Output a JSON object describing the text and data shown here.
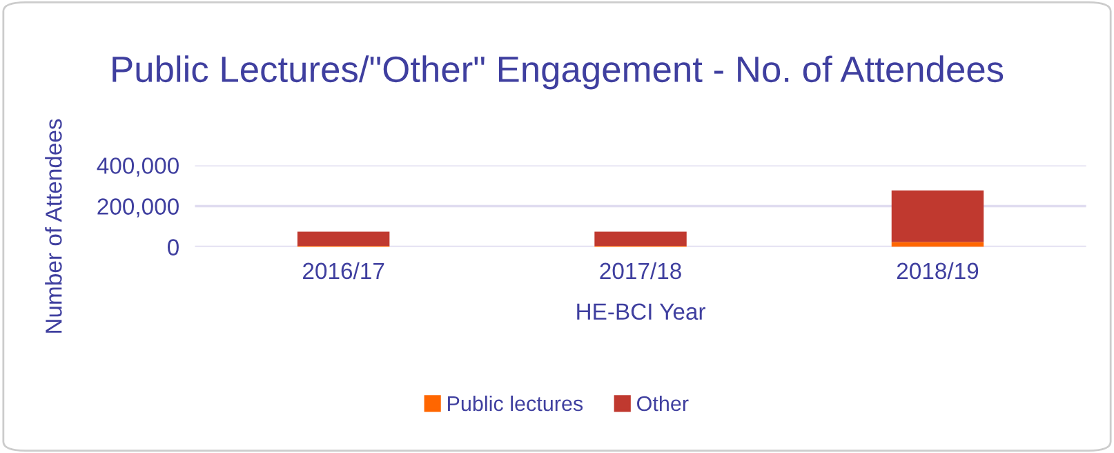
{
  "chart_data": {
    "type": "bar",
    "title": "Public Lectures/\"Other\" Engagement - No. of Attendees",
    "xlabel": "HE-BCI Year",
    "ylabel": "Number of Attendees",
    "categories": [
      "2016/17",
      "2017/18",
      "2018/19"
    ],
    "series": [
      {
        "name": "Public lectures",
        "color": "#ff6600",
        "values": [
          5000,
          5000,
          24000
        ]
      },
      {
        "name": "Other",
        "color": "#c0392f",
        "values": [
          70000,
          70000,
          253000
        ]
      }
    ],
    "stacked": true,
    "ylim": [
      0,
      400000
    ],
    "yticks": [
      {
        "value": 0,
        "label": "0"
      },
      {
        "value": 200000,
        "label": "200,000"
      },
      {
        "value": 400000,
        "label": "400,000"
      }
    ],
    "grid": "y",
    "legend": "bottom"
  }
}
